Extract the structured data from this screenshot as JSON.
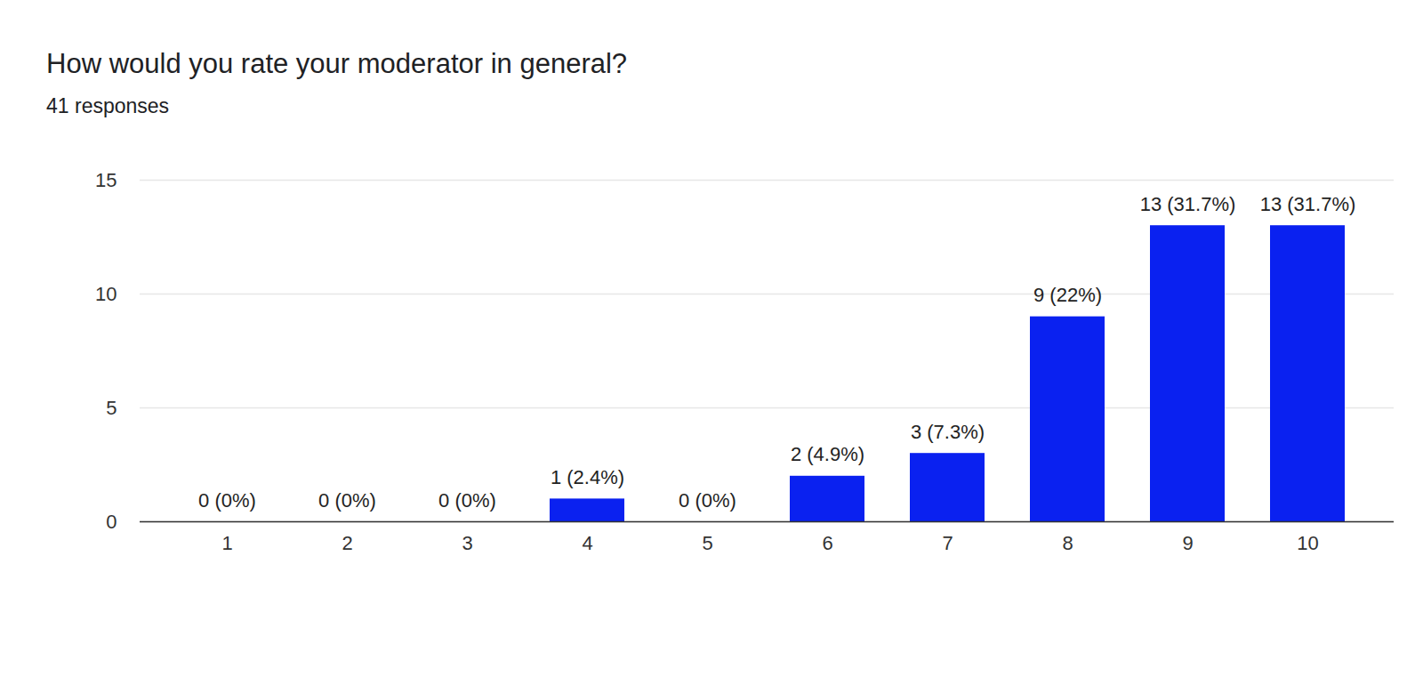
{
  "chart_data": {
    "type": "bar",
    "title": "How would you rate your moderator in general?",
    "subtitle": "41 responses",
    "categories": [
      "1",
      "2",
      "3",
      "4",
      "5",
      "6",
      "7",
      "8",
      "9",
      "10"
    ],
    "values": [
      0,
      0,
      0,
      1,
      0,
      2,
      3,
      9,
      13,
      13
    ],
    "value_labels": [
      "0 (0%)",
      "0 (0%)",
      "0 (0%)",
      "1 (2.4%)",
      "0 (0%)",
      "2 (4.9%)",
      "3 (7.3%)",
      "9 (22%)",
      "13 (31.7%)",
      "13 (31.7%)"
    ],
    "color": "#0a21f0",
    "ylim": [
      0,
      15
    ],
    "yticks": [
      0,
      5,
      10,
      15
    ],
    "grid": true,
    "data_labels": true
  }
}
